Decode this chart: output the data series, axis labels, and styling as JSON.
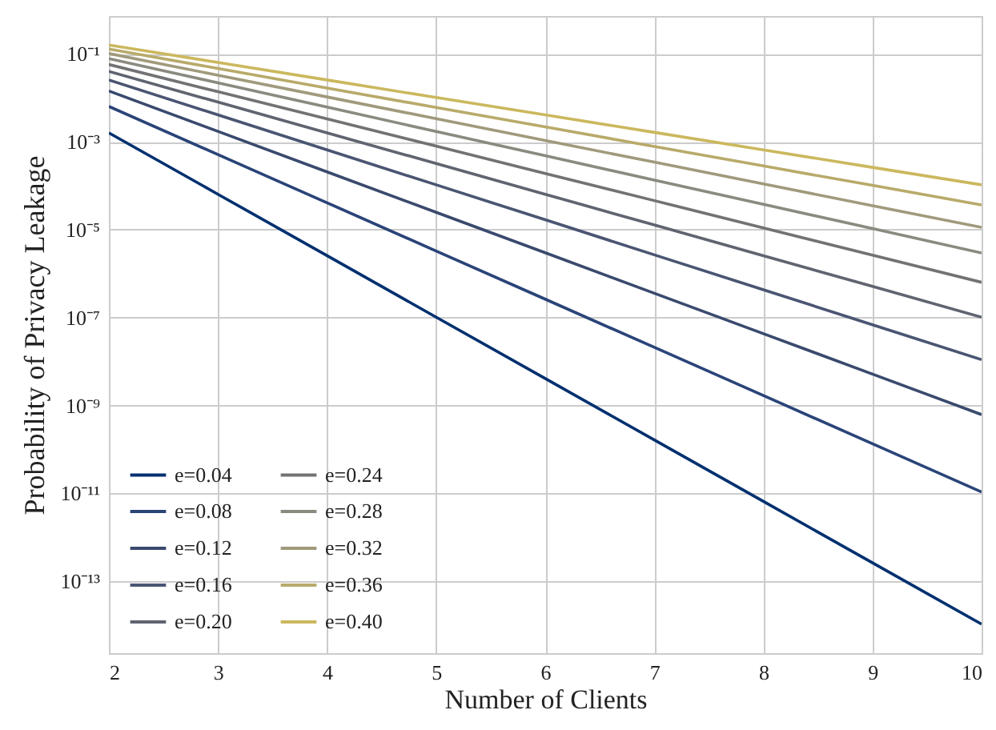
{
  "chart_data": {
    "type": "line",
    "xlabel": "Number of Clients",
    "ylabel": "Probability of Privacy Leakage",
    "x": [
      2,
      3,
      4,
      5,
      6,
      7,
      8,
      9,
      10
    ],
    "series": [
      {
        "name": "e=0.04",
        "color": "#00306f",
        "values": [
          0.0016,
          6.4e-05,
          2.56e-06,
          1.02e-07,
          4.1e-09,
          1.64e-10,
          6.55e-12,
          2.62e-13,
          1.05e-14
        ]
      },
      {
        "name": "e=0.08",
        "color": "#2a4478",
        "values": [
          0.0064,
          0.000512,
          4.1e-05,
          3.28e-06,
          2.62e-07,
          2.1e-08,
          1.68e-09,
          1.34e-10,
          1.07e-11
        ]
      },
      {
        "name": "e=0.12",
        "color": "#3a4a6e",
        "values": [
          0.0144,
          0.00173,
          0.000207,
          2.49e-05,
          2.99e-06,
          3.58e-07,
          4.3e-08,
          5.16e-09,
          6.19e-10
        ]
      },
      {
        "name": "e=0.16",
        "color": "#4a5572",
        "values": [
          0.0256,
          0.0041,
          0.000655,
          0.000105,
          1.68e-05,
          2.68e-06,
          4.29e-07,
          6.87e-08,
          1.1e-08
        ]
      },
      {
        "name": "e=0.20",
        "color": "#5f6470",
        "values": [
          0.04,
          0.008,
          0.0016,
          0.00032,
          6.4e-05,
          1.28e-05,
          2.56e-06,
          5.12e-07,
          1.02e-07
        ]
      },
      {
        "name": "e=0.24",
        "color": "#727274",
        "values": [
          0.0576,
          0.0138,
          0.00332,
          0.000796,
          0.000191,
          4.59e-05,
          1.1e-05,
          2.64e-06,
          6.34e-07
        ]
      },
      {
        "name": "e=0.28",
        "color": "#8a8a80",
        "values": [
          0.0784,
          0.022,
          0.00615,
          0.00172,
          0.000482,
          0.000135,
          3.78e-05,
          1.06e-05,
          2.96e-06
        ]
      },
      {
        "name": "e=0.32",
        "color": "#a09a7c",
        "values": [
          0.1024,
          0.0328,
          0.0105,
          0.00336,
          0.00107,
          0.000344,
          0.00011,
          3.52e-05,
          1.13e-05
        ]
      },
      {
        "name": "e=0.36",
        "color": "#b8aa6a",
        "values": [
          0.1296,
          0.0467,
          0.0168,
          0.00605,
          0.00218,
          0.000784,
          0.000282,
          0.000102,
          3.66e-05
        ]
      },
      {
        "name": "e=0.40",
        "color": "#cbb85e",
        "values": [
          0.16,
          0.064,
          0.0256,
          0.0102,
          0.0041,
          0.00164,
          0.000655,
          0.000262,
          0.000105
        ]
      }
    ],
    "xlim": [
      2,
      10
    ],
    "xticks": [
      2,
      3,
      4,
      5,
      6,
      7,
      8,
      9,
      10
    ],
    "ylim": [
      2.3e-15,
      0.73
    ],
    "yticks": [
      {
        "value": 1e-13,
        "label": "10⁻¹³"
      },
      {
        "value": 1e-11,
        "label": "10⁻¹¹"
      },
      {
        "value": 1e-09,
        "label": "10⁻⁹"
      },
      {
        "value": 1e-07,
        "label": "10⁻⁷"
      },
      {
        "value": 1e-05,
        "label": "10⁻⁵"
      },
      {
        "value": 0.001,
        "label": "10⁻³"
      },
      {
        "value": 0.1,
        "label": "10⁻¹"
      }
    ],
    "log": true,
    "grid": true,
    "legend": "bottom left"
  }
}
